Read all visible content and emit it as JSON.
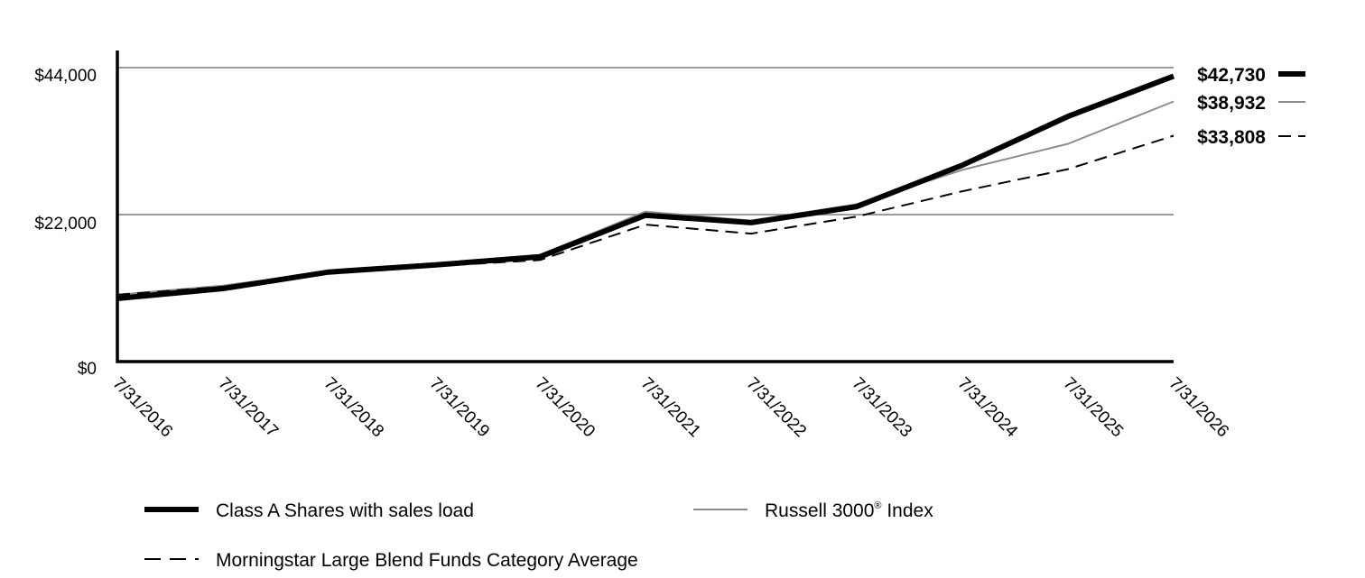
{
  "chart_data": {
    "type": "line",
    "title": "",
    "xlabel": "",
    "ylabel": "",
    "ylim": [
      0,
      44000
    ],
    "grid": "horizontal lines at y tick values",
    "legend_placement": "bottom",
    "x": [
      "7/31/2016",
      "7/31/2017",
      "7/31/2018",
      "7/31/2019",
      "7/31/2020",
      "7/31/2021",
      "7/31/2022",
      "7/31/2023",
      "7/31/2024",
      "7/31/2025",
      "7/31/2026"
    ],
    "y_ticks": [
      {
        "value": 0,
        "label": "$0"
      },
      {
        "value": 22000,
        "label": "$22,000"
      },
      {
        "value": 44000,
        "label": "$44,000"
      }
    ],
    "series": [
      {
        "name": "Class A Shares with sales load",
        "end_label": "$42,730",
        "color": "#000000",
        "style": "thick-solid",
        "values": [
          9450,
          10930,
          13400,
          14450,
          15690,
          21900,
          20800,
          23200,
          29400,
          36700,
          42730
        ]
      },
      {
        "name": "Russell 3000® Index",
        "name_base": "Russell 3000",
        "name_sup": "®",
        "name_suffix": " Index",
        "end_label": "$38,932",
        "color": "#8c8c8c",
        "style": "thin-solid",
        "values": [
          10000,
          11380,
          13400,
          14580,
          15970,
          22450,
          21100,
          23550,
          28700,
          32600,
          38932
        ]
      },
      {
        "name": "Morningstar Large Blend Funds Category Average",
        "end_label": "$33,808",
        "color": "#000000",
        "style": "dashed",
        "values": [
          10000,
          11200,
          13300,
          14300,
          15200,
          20500,
          19150,
          21700,
          25500,
          28800,
          33808
        ]
      }
    ]
  }
}
